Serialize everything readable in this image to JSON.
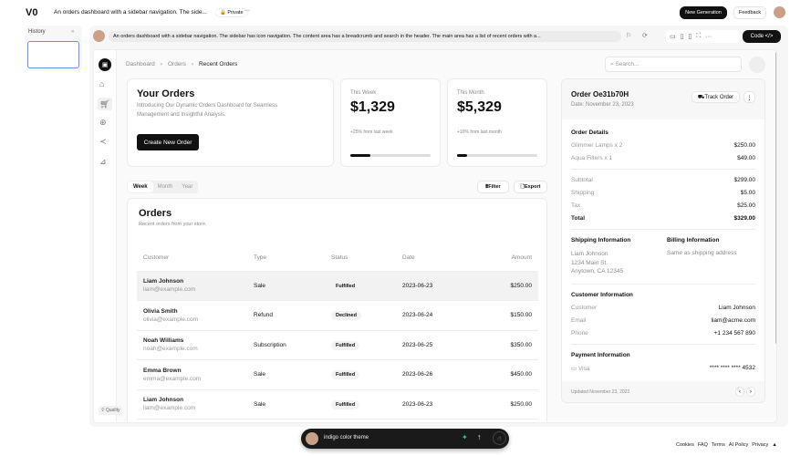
{
  "topbar": {
    "logo": "V0",
    "title": "An orders dashboard with a sidebar navigation. The side...",
    "privacy": "Private",
    "more": "···",
    "new_generation": "New Generation",
    "feedback": "Feedback"
  },
  "history": {
    "title": "History",
    "collapse": "«"
  },
  "prompt_bar": {
    "text": "An orders dashboard with a sidebar navigation. The sidebar has icon navigation. The content area has a breadcrumb and search in the header. The main area has a list of recent orders with a...",
    "code_label": "Code </>"
  },
  "preview": {
    "breadcrumb": [
      "Dashboard",
      "Orders",
      "Recent Orders"
    ],
    "search_placeholder": "Search...",
    "sidebar_icons": [
      "package-icon",
      "home-icon",
      "cart-icon",
      "box-icon",
      "share-icon",
      "chart-icon"
    ],
    "hero": {
      "title": "Your Orders",
      "description": "Introducing Our Dynamic Orders Dashboard for Seamless Management and Insightful Analysis.",
      "button": "Create New Order"
    },
    "stats": [
      {
        "label": "This Week",
        "value": "$1,329",
        "change": "+25% from last week",
        "progress": 25
      },
      {
        "label": "This Month",
        "value": "$5,329",
        "change": "+10% from last month",
        "progress": 12
      }
    ],
    "tabs": [
      "Week",
      "Month",
      "Year"
    ],
    "active_tab": "Week",
    "filter": "Filter",
    "export": "Export",
    "orders": {
      "title": "Orders",
      "subtitle": "Recent orders from your store.",
      "columns": [
        "Customer",
        "Type",
        "Status",
        "Date",
        "Amount"
      ],
      "rows": [
        {
          "name": "Liam Johnson",
          "email": "liam@example.com",
          "type": "Sale",
          "status": "Fulfilled",
          "date": "2023-06-23",
          "amount": "$250.00"
        },
        {
          "name": "Olivia Smith",
          "email": "olivia@example.com",
          "type": "Refund",
          "status": "Declined",
          "date": "2023-06-24",
          "amount": "$150.00"
        },
        {
          "name": "Noah Williams",
          "email": "noah@example.com",
          "type": "Subscription",
          "status": "Fulfilled",
          "date": "2023-06-25",
          "amount": "$350.00"
        },
        {
          "name": "Emma Brown",
          "email": "emma@example.com",
          "type": "Sale",
          "status": "Fulfilled",
          "date": "2023-06-26",
          "amount": "$450.00"
        },
        {
          "name": "Liam Johnson",
          "email": "liam@example.com",
          "type": "Sale",
          "status": "Fulfilled",
          "date": "2023-06-23",
          "amount": "$250.00"
        }
      ]
    },
    "detail": {
      "title": "Order Oe31b70H",
      "date": "Date: November 23, 2023",
      "track": "Track Order",
      "details_title": "Order Details",
      "items": [
        {
          "label": "Glimmer Lamps x 2",
          "value": "$250.00"
        },
        {
          "label": "Aqua Filters x 1",
          "value": "$49.00"
        }
      ],
      "totals": [
        {
          "label": "Subtotal",
          "value": "$299.00"
        },
        {
          "label": "Shipping",
          "value": "$5.00"
        },
        {
          "label": "Tax",
          "value": "$25.00"
        },
        {
          "label": "Total",
          "value": "$329.00"
        }
      ],
      "shipping_title": "Shipping Information",
      "shipping": [
        "Liam Johnson",
        "1234 Main St.",
        "Anytown, CA 12345"
      ],
      "billing_title": "Billing Information",
      "billing": "Same as shipping address",
      "customer_title": "Customer Information",
      "customer": [
        {
          "label": "Customer",
          "value": "Liam Johnson"
        },
        {
          "label": "Email",
          "value": "liam@acme.com"
        },
        {
          "label": "Phone",
          "value": "+1 234 567 890"
        }
      ],
      "payment_title": "Payment Information",
      "payment_method": "Visa",
      "card": "**** **** **** 4532",
      "updated": "Updated November 23, 2023"
    }
  },
  "quality": "Quality",
  "chat": {
    "value": "indigo color theme"
  },
  "footer": [
    "Cookies",
    "FAQ",
    "Terms",
    "AI Policy",
    "Privacy"
  ]
}
